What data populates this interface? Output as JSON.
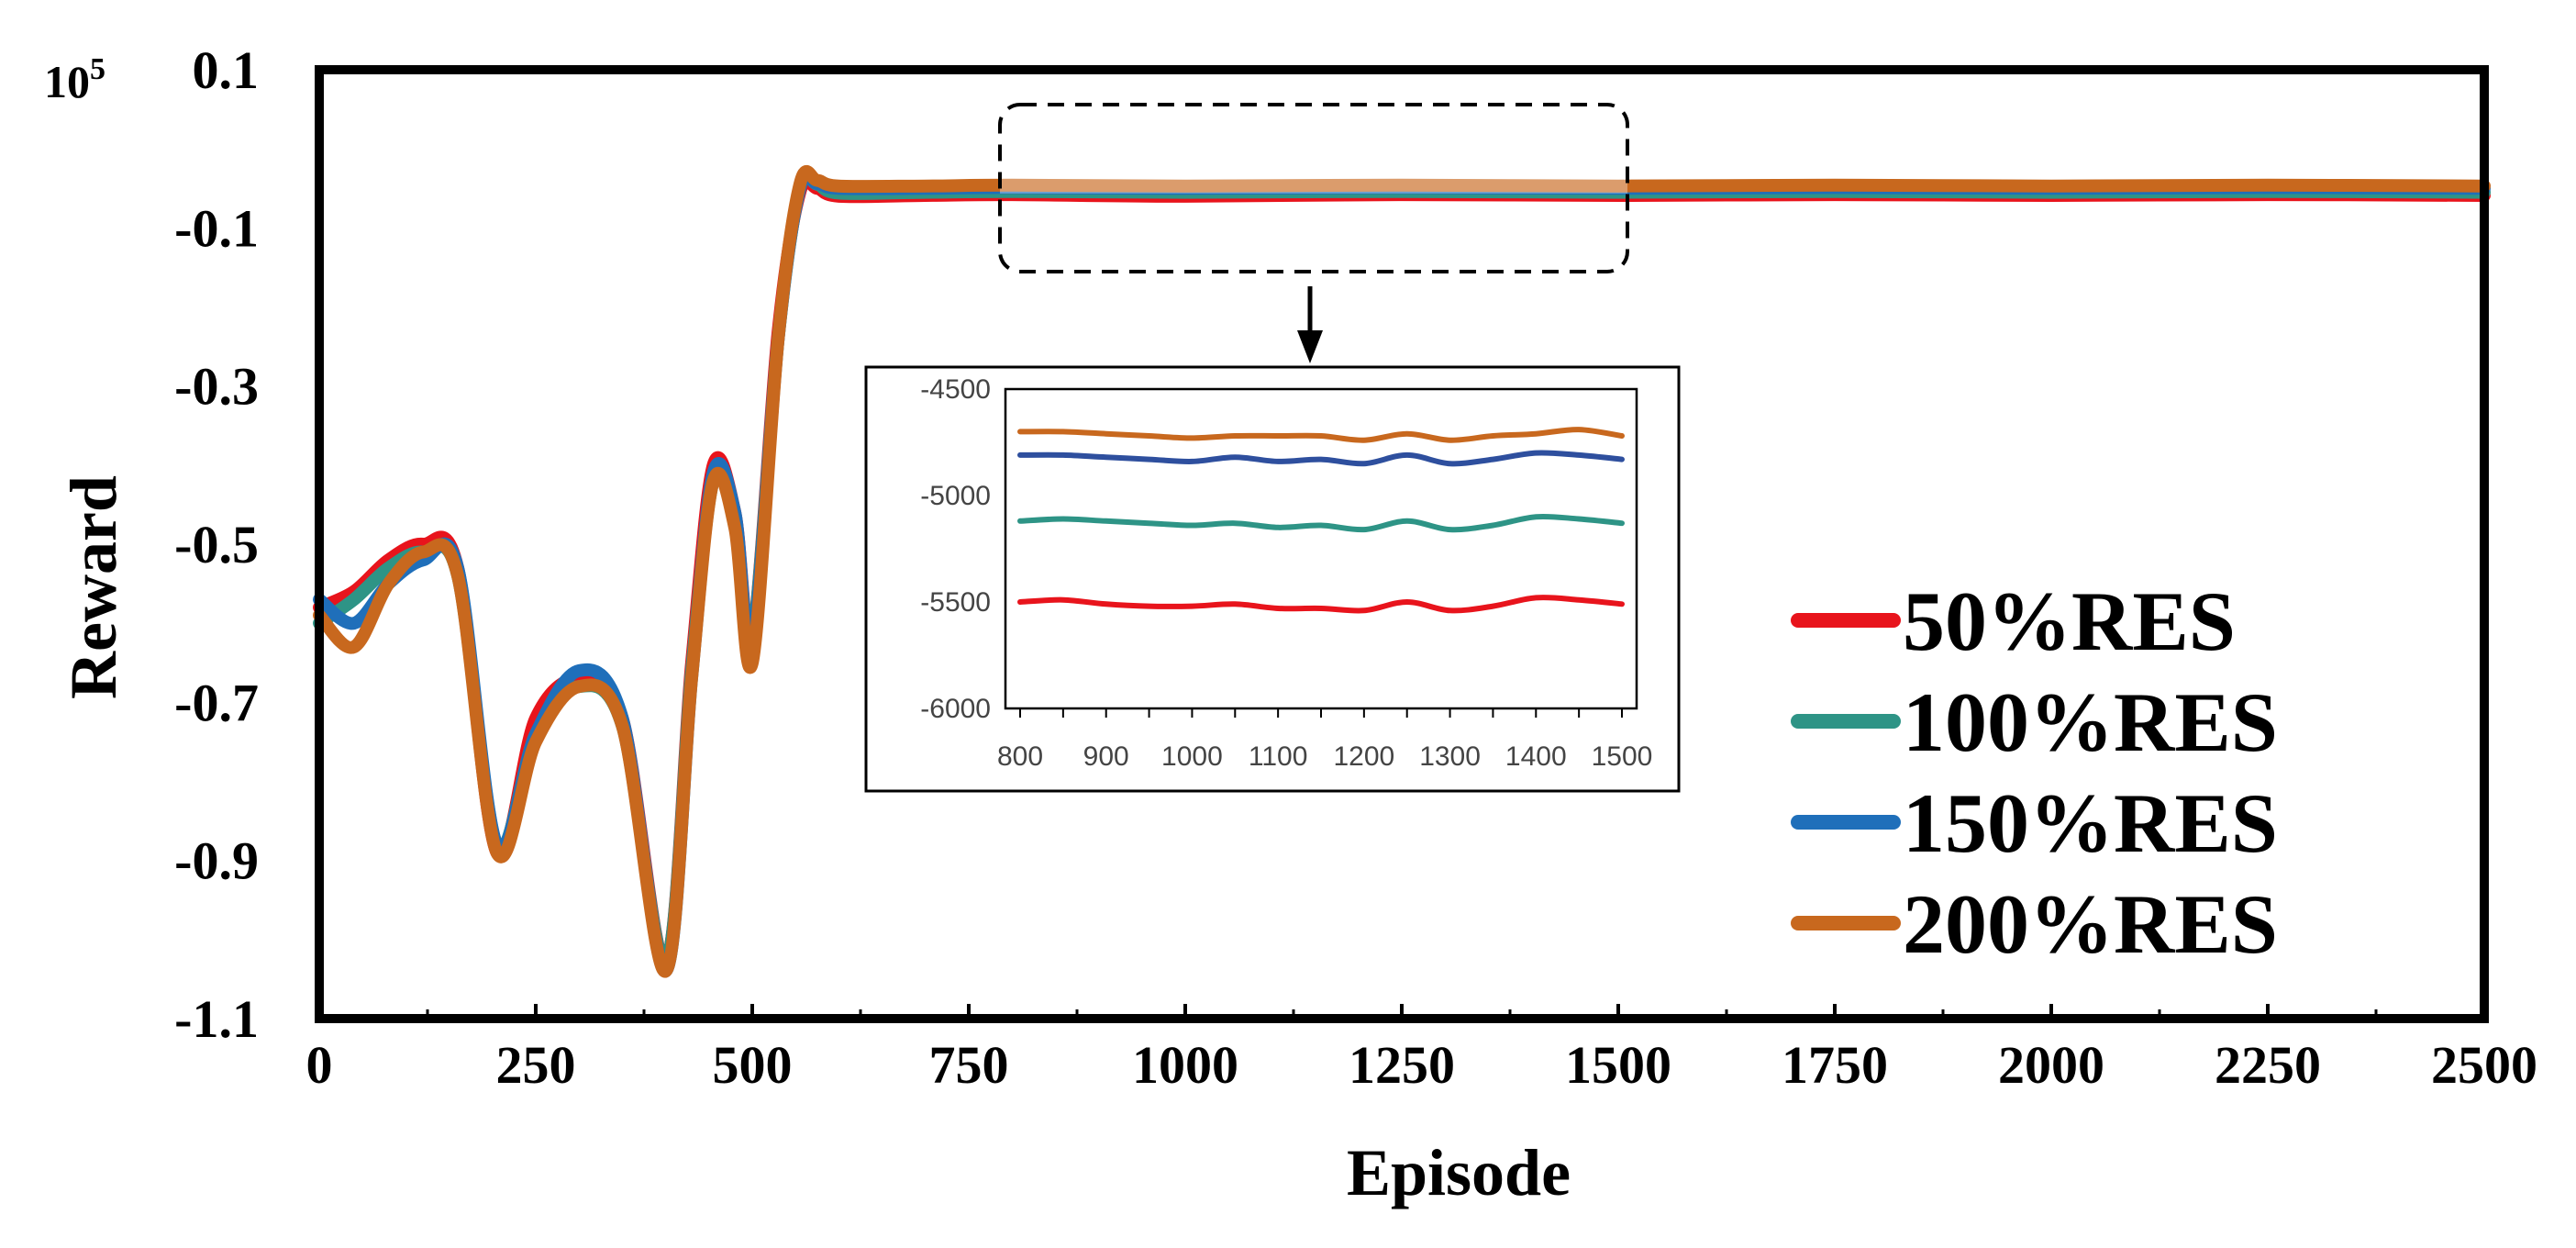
{
  "chart_data": [
    {
      "type": "line",
      "title": "",
      "xlabel": "Episode",
      "ylabel": "Reward",
      "y_multiplier": "10",
      "y_multiplier_exp": "5",
      "xlim": [
        0,
        2500
      ],
      "ylim": [
        -1.1,
        0.1
      ],
      "x_ticks": [
        0,
        250,
        500,
        750,
        1000,
        1250,
        1500,
        1750,
        2000,
        2250,
        2500
      ],
      "x_tick_labels": [
        "0",
        "250",
        "500",
        "750",
        "1000",
        "1250",
        "1500",
        "1750",
        "2000",
        "2250",
        "2500"
      ],
      "y_ticks": [
        0.1,
        -0.1,
        -0.3,
        -0.5,
        -0.7,
        -0.9,
        -1.1
      ],
      "y_tick_labels": [
        "0.1",
        "-0.1",
        "-0.3",
        "-0.5",
        "-0.7",
        "-0.9",
        "-1.1"
      ],
      "legend_position": "bottom-right",
      "series": [
        {
          "name": "50%RES",
          "color": "#e8141c",
          "x": [
            0,
            40,
            80,
            120,
            160,
            205,
            250,
            300,
            350,
            400,
            430,
            455,
            480,
            500,
            530,
            555,
            575,
            600,
            700,
            800,
            1000,
            1250,
            1500,
            1750,
            2000,
            2250,
            2500
          ],
          "y": [
            -0.58,
            -0.56,
            -0.52,
            -0.5,
            -0.53,
            -0.89,
            -0.72,
            -0.67,
            -0.72,
            -1.03,
            -0.65,
            -0.4,
            -0.46,
            -0.62,
            -0.23,
            -0.055,
            -0.05,
            -0.06,
            -0.059,
            -0.058,
            -0.06,
            -0.058,
            -0.059,
            -0.058,
            -0.059,
            -0.058,
            -0.059
          ]
        },
        {
          "name": "100%RES",
          "color": "#2e9486",
          "x": [
            0,
            40,
            80,
            120,
            160,
            205,
            250,
            300,
            350,
            400,
            430,
            455,
            480,
            500,
            530,
            555,
            575,
            600,
            700,
            800,
            1000,
            1250,
            1500,
            1750,
            2000,
            2250,
            2500
          ],
          "y": [
            -0.6,
            -0.57,
            -0.53,
            -0.51,
            -0.54,
            -0.88,
            -0.74,
            -0.68,
            -0.73,
            -1.03,
            -0.66,
            -0.42,
            -0.47,
            -0.62,
            -0.24,
            -0.05,
            -0.045,
            -0.056,
            -0.055,
            -0.054,
            -0.055,
            -0.054,
            -0.055,
            -0.054,
            -0.055,
            -0.054,
            -0.055
          ]
        },
        {
          "name": "150%RES",
          "color": "#1f6fba",
          "x": [
            0,
            40,
            80,
            120,
            160,
            205,
            250,
            300,
            350,
            400,
            430,
            455,
            480,
            500,
            530,
            555,
            575,
            600,
            700,
            800,
            1000,
            1250,
            1500,
            1750,
            2000,
            2250,
            2500
          ],
          "y": [
            -0.57,
            -0.6,
            -0.55,
            -0.52,
            -0.53,
            -0.88,
            -0.74,
            -0.66,
            -0.72,
            -1.04,
            -0.67,
            -0.41,
            -0.46,
            -0.63,
            -0.24,
            -0.05,
            -0.044,
            -0.05,
            -0.05,
            -0.049,
            -0.05,
            -0.049,
            -0.05,
            -0.049,
            -0.05,
            -0.049,
            -0.05
          ]
        },
        {
          "name": "200%RES",
          "color": "#c8681e",
          "x": [
            0,
            40,
            80,
            120,
            160,
            205,
            250,
            300,
            350,
            400,
            430,
            455,
            480,
            500,
            530,
            555,
            575,
            600,
            700,
            800,
            1000,
            1250,
            1500,
            1750,
            2000,
            2250,
            2500
          ],
          "y": [
            -0.59,
            -0.63,
            -0.55,
            -0.51,
            -0.54,
            -0.89,
            -0.75,
            -0.68,
            -0.73,
            -1.04,
            -0.67,
            -0.42,
            -0.48,
            -0.65,
            -0.24,
            -0.045,
            -0.04,
            -0.047,
            -0.047,
            -0.046,
            -0.047,
            -0.046,
            -0.047,
            -0.046,
            -0.047,
            -0.046,
            -0.047
          ]
        }
      ]
    },
    {
      "type": "line",
      "title": "",
      "xlabel": "",
      "ylabel": "",
      "xlim": [
        800,
        1500
      ],
      "ylim": [
        -6000,
        -4500
      ],
      "x_ticks": [
        800,
        900,
        1000,
        1100,
        1200,
        1300,
        1400,
        1500
      ],
      "x_tick_labels": [
        "800",
        "900",
        "1000",
        "1100",
        "1200",
        "1300",
        "1400",
        "1500"
      ],
      "y_ticks": [
        -4500,
        -5000,
        -5500,
        -6000
      ],
      "y_tick_labels": [
        "-4500",
        "-5000",
        "-5500",
        "-6000"
      ],
      "series": [
        {
          "name": "50%RES",
          "color": "#e8141c",
          "x": [
            800,
            850,
            900,
            950,
            1000,
            1050,
            1100,
            1150,
            1200,
            1250,
            1300,
            1350,
            1400,
            1450,
            1500
          ],
          "y": [
            -5500,
            -5490,
            -5510,
            -5520,
            -5520,
            -5510,
            -5530,
            -5530,
            -5540,
            -5500,
            -5540,
            -5520,
            -5480,
            -5490,
            -5510
          ]
        },
        {
          "name": "100%RES",
          "color": "#2e9486",
          "x": [
            800,
            850,
            900,
            950,
            1000,
            1050,
            1100,
            1150,
            1200,
            1250,
            1300,
            1350,
            1400,
            1450,
            1500
          ],
          "y": [
            -5120,
            -5110,
            -5120,
            -5130,
            -5140,
            -5130,
            -5150,
            -5140,
            -5160,
            -5120,
            -5160,
            -5140,
            -5100,
            -5110,
            -5130
          ]
        },
        {
          "name": "150%RES",
          "color": "#2e4f9e",
          "x": [
            800,
            850,
            900,
            950,
            1000,
            1050,
            1100,
            1150,
            1200,
            1250,
            1300,
            1350,
            1400,
            1450,
            1500
          ],
          "y": [
            -4810,
            -4810,
            -4820,
            -4830,
            -4840,
            -4820,
            -4840,
            -4830,
            -4850,
            -4810,
            -4850,
            -4830,
            -4800,
            -4810,
            -4830
          ]
        },
        {
          "name": "200%RES",
          "color": "#c8681e",
          "x": [
            800,
            850,
            900,
            950,
            1000,
            1050,
            1100,
            1150,
            1200,
            1250,
            1300,
            1350,
            1400,
            1450,
            1500
          ],
          "y": [
            -4700,
            -4700,
            -4710,
            -4720,
            -4730,
            -4720,
            -4720,
            -4720,
            -4740,
            -4710,
            -4740,
            -4720,
            -4710,
            -4690,
            -4720
          ]
        }
      ]
    }
  ]
}
